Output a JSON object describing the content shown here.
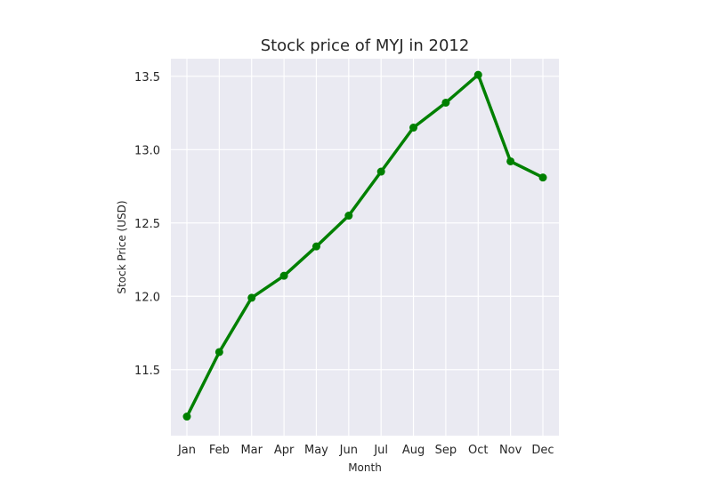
{
  "chart_data": {
    "type": "line",
    "title": "Stock price of MYJ in 2012",
    "xlabel": "Month",
    "ylabel": "Stock Price (USD)",
    "categories": [
      "Jan",
      "Feb",
      "Mar",
      "Apr",
      "May",
      "Jun",
      "Jul",
      "Aug",
      "Sep",
      "Oct",
      "Nov",
      "Dec"
    ],
    "values": [
      11.18,
      11.62,
      11.99,
      12.14,
      12.34,
      12.55,
      12.85,
      13.15,
      13.32,
      13.51,
      12.92,
      12.81
    ],
    "ylim": [
      11.05,
      13.62
    ],
    "yticks": [
      "11.5",
      "12.0",
      "12.5",
      "13.0",
      "13.5"
    ],
    "line_color": "#008000",
    "plot_background": "#eaeaf2",
    "grid_color": "#ffffff",
    "grid": true,
    "legend": false
  }
}
